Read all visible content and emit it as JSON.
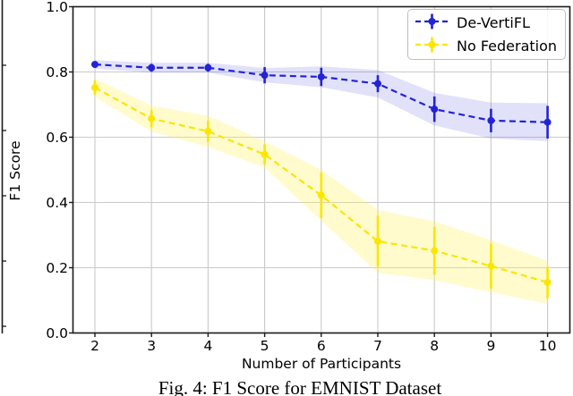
{
  "figure": {
    "caption": "Fig. 4: F1 Score for EMNIST Dataset"
  },
  "chart_data": {
    "type": "line",
    "x": [
      2,
      3,
      4,
      5,
      6,
      7,
      8,
      9,
      10
    ],
    "xlabel": "Number of Participants",
    "ylabel": "F1 Score",
    "xticks": [
      "2",
      "3",
      "4",
      "5",
      "6",
      "7",
      "8",
      "9",
      "10"
    ],
    "yticks": [
      "0.0",
      "0.2",
      "0.4",
      "0.6",
      "0.8",
      "1.0"
    ],
    "ytick_values": [
      0.0,
      0.2,
      0.4,
      0.6,
      0.8,
      1.0
    ],
    "ylim": [
      0.0,
      1.0
    ],
    "grid": true,
    "legend_position": "upper right",
    "line_style": "dashed",
    "marker": "circle-with-error-bar",
    "colors": {
      "grid": "#cacaca",
      "spine": "#1a1a1a",
      "legend_border": "#bfbfbf"
    },
    "series": [
      {
        "name": "De-VertiFL",
        "color": "#2323d6",
        "band_color": "rgba(70,70,225,0.16)",
        "values": [
          0.823,
          0.813,
          0.813,
          0.79,
          0.785,
          0.764,
          0.686,
          0.651,
          0.646
        ],
        "errors": [
          0.01,
          0.012,
          0.012,
          0.025,
          0.028,
          0.026,
          0.039,
          0.036,
          0.05
        ],
        "band": [
          0.013,
          0.015,
          0.015,
          0.022,
          0.032,
          0.042,
          0.05,
          0.055,
          0.058
        ]
      },
      {
        "name": "No Federation",
        "color": "#f9e602",
        "band_color": "rgba(255,242,90,0.30)",
        "values": [
          0.752,
          0.657,
          0.618,
          0.547,
          0.422,
          0.281,
          0.252,
          0.205,
          0.155
        ],
        "errors": [
          0.022,
          0.026,
          0.033,
          0.031,
          0.07,
          0.078,
          0.073,
          0.069,
          0.048
        ],
        "band": [
          0.028,
          0.04,
          0.048,
          0.04,
          0.078,
          0.096,
          0.09,
          0.08,
          0.066
        ]
      }
    ]
  }
}
